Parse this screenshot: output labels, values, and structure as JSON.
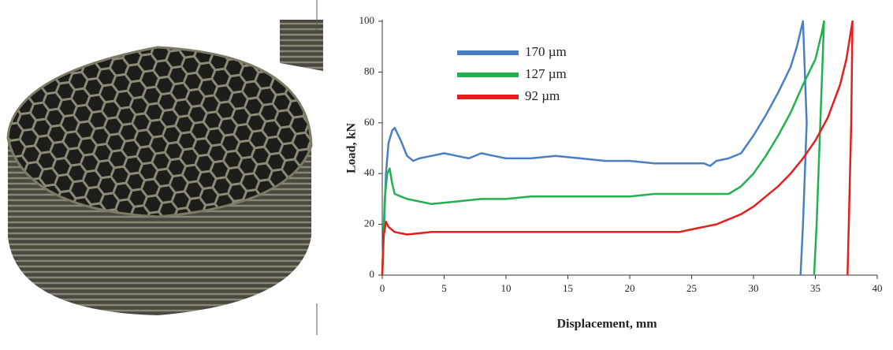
{
  "chart_data": {
    "type": "line",
    "xlabel": "Displacement, mm",
    "ylabel": "Load, kN",
    "xlim": [
      0,
      40
    ],
    "xticks": [
      0,
      5,
      10,
      15,
      20,
      25,
      30,
      35,
      40
    ],
    "ylim": [
      0,
      100
    ],
    "yticks": [
      0,
      20,
      40,
      60,
      80,
      100
    ],
    "legend": "upper-left",
    "grid": false,
    "series": [
      {
        "name": "170 µm",
        "color": "#4a7fc1",
        "x": [
          0,
          0.3,
          0.5,
          0.8,
          1.0,
          1.5,
          2,
          2.5,
          3,
          4,
          5,
          6,
          7,
          8,
          9,
          10,
          12,
          14,
          16,
          18,
          20,
          22,
          24,
          26,
          26.5,
          27,
          28,
          29,
          30,
          31,
          32,
          33,
          33.5,
          34,
          34.3,
          34,
          33.8
        ],
        "values": [
          0,
          40,
          52,
          57,
          58,
          53,
          47,
          45,
          46,
          47,
          48,
          47,
          46,
          48,
          47,
          46,
          46,
          47,
          46,
          45,
          45,
          44,
          44,
          44,
          43,
          45,
          46,
          48,
          55,
          63,
          72,
          82,
          90,
          100,
          60,
          20,
          0
        ]
      },
      {
        "name": "127 µm",
        "color": "#22b050",
        "x": [
          0,
          0.2,
          0.4,
          0.6,
          0.8,
          1,
          2,
          4,
          6,
          8,
          10,
          12,
          14,
          16,
          18,
          20,
          22,
          24,
          26,
          28,
          29,
          30,
          31,
          32,
          33,
          34,
          35,
          35.5,
          35.7,
          35.4,
          35.1,
          34.9
        ],
        "values": [
          0,
          30,
          40,
          42,
          36,
          32,
          30,
          28,
          29,
          30,
          30,
          31,
          31,
          31,
          31,
          31,
          32,
          32,
          32,
          32,
          35,
          40,
          47,
          55,
          64,
          75,
          85,
          95,
          100,
          60,
          20,
          0
        ]
      },
      {
        "name": " 92 µm",
        "color": "#e02020",
        "x": [
          0,
          0.1,
          0.3,
          0.5,
          1,
          2,
          4,
          6,
          8,
          10,
          12,
          14,
          16,
          18,
          20,
          22,
          24,
          25,
          26,
          27,
          28,
          29,
          30,
          31,
          32,
          33,
          34,
          35,
          36,
          37,
          37.5,
          38,
          37.9,
          37.7,
          37.6
        ],
        "values": [
          0,
          15,
          21,
          19,
          17,
          16,
          17,
          17,
          17,
          17,
          17,
          17,
          17,
          17,
          17,
          17,
          17,
          18,
          19,
          20,
          22,
          24,
          27,
          31,
          35,
          40,
          46,
          53,
          62,
          75,
          85,
          100,
          60,
          20,
          0
        ]
      }
    ]
  }
}
